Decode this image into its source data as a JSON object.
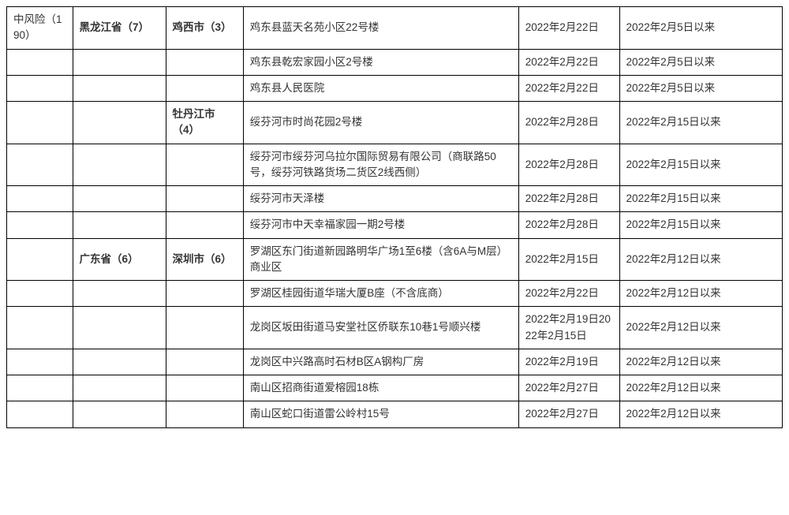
{
  "table": {
    "columns": [
      "risk",
      "province",
      "city",
      "address",
      "date1",
      "date2"
    ],
    "column_classes": [
      "col-risk",
      "col-prov",
      "col-city",
      "col-addr",
      "col-date1",
      "col-date2"
    ],
    "risk_level": "中风险（190）",
    "rows": [
      {
        "province": "黑龙江省（7）",
        "city": "鸡西市（3）",
        "address": "鸡东县蓝天名苑小区22号楼",
        "date1": "2022年2月22日",
        "date2": "2022年2月5日以来"
      },
      {
        "province": "",
        "city": "",
        "address": "鸡东县乾宏家园小区2号楼",
        "date1": "2022年2月22日",
        "date2": "2022年2月5日以来"
      },
      {
        "province": "",
        "city": "",
        "address": "鸡东县人民医院",
        "date1": "2022年2月22日",
        "date2": "2022年2月5日以来"
      },
      {
        "province": "",
        "city": "牡丹江市（4）",
        "address": "绥芬河市时尚花园2号楼",
        "date1": "2022年2月28日",
        "date2": "2022年2月15日以来"
      },
      {
        "province": "",
        "city": "",
        "address": "绥芬河市绥芬河乌拉尔国际贸易有限公司（商联路50号，绥芬河铁路货场二货区2线西侧）",
        "date1": "2022年2月28日",
        "date2": "2022年2月15日以来"
      },
      {
        "province": "",
        "city": "",
        "address": "绥芬河市天泽楼",
        "date1": "2022年2月28日",
        "date2": "2022年2月15日以来"
      },
      {
        "province": "",
        "city": "",
        "address": "绥芬河市中天幸福家园一期2号楼",
        "date1": "2022年2月28日",
        "date2": "2022年2月15日以来"
      },
      {
        "province": "广东省（6）",
        "city": "深圳市（6）",
        "address": "罗湖区东门街道新园路明华广场1至6楼（含6A与M层）商业区",
        "date1": "2022年2月15日",
        "date2": "2022年2月12日以来"
      },
      {
        "province": "",
        "city": "",
        "address": "罗湖区桂园街道华瑞大厦B座（不含底商）",
        "date1": "2022年2月22日",
        "date2": "2022年2月12日以来"
      },
      {
        "province": "",
        "city": "",
        "address": "龙岗区坂田街道马安堂社区侨联东10巷1号顺兴楼",
        "date1": "2022年2月19日2022年2月15日",
        "date2": "2022年2月12日以来"
      },
      {
        "province": "",
        "city": "",
        "address": "龙岗区中兴路高时石材B区A钢构厂房",
        "date1": "2022年2月19日",
        "date2": "2022年2月12日以来"
      },
      {
        "province": "",
        "city": "",
        "address": "南山区招商街道爱榕园18栋",
        "date1": "2022年2月27日",
        "date2": "2022年2月12日以来"
      },
      {
        "province": "",
        "city": "",
        "address": "南山区蛇口街道雷公岭村15号",
        "date1": "2022年2月27日",
        "date2": "2022年2月12日以来"
      }
    ]
  }
}
